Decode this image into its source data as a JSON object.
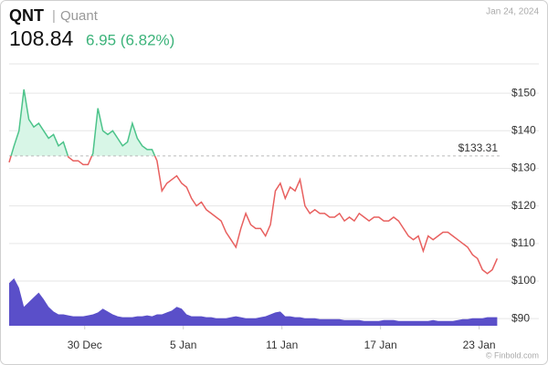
{
  "chart_data": {
    "type": "line",
    "symbol": "QNT",
    "name": "Quant",
    "date": "Jan 24, 2024",
    "price": "108.84",
    "change": "6.95 (6.82%)",
    "footer": "© Finbold.com",
    "baseline": {
      "value": 133.31,
      "label": "$133.31"
    },
    "xlim": [
      -4.6,
      25.3
    ],
    "xticks": [
      {
        "value": 0,
        "label": "30 Dec"
      },
      {
        "value": 6,
        "label": "5 Jan"
      },
      {
        "value": 12,
        "label": "11 Jan"
      },
      {
        "value": 18,
        "label": "17 Jan"
      },
      {
        "value": 24,
        "label": "23 Jan"
      }
    ],
    "ylim": [
      88.1,
      157.8
    ],
    "yticks": [
      {
        "value": 90,
        "label": "$90"
      },
      {
        "value": 100,
        "label": "$100"
      },
      {
        "value": 110,
        "label": "$110"
      },
      {
        "value": 120,
        "label": "$120"
      },
      {
        "value": 130,
        "label": "$130"
      },
      {
        "value": 140,
        "label": "$140"
      },
      {
        "value": 150,
        "label": "$150"
      }
    ],
    "grid": true,
    "colors": {
      "above": "#4cc38a",
      "below": "#e8605f",
      "fill_above": "#d8f6e7",
      "volume": "#5a4fc9"
    },
    "x": [
      -4.6,
      -4.3,
      -4.0,
      -3.7,
      -3.4,
      -3.1,
      -2.8,
      -2.5,
      -2.2,
      -1.9,
      -1.6,
      -1.3,
      -1.0,
      -0.7,
      -0.4,
      -0.1,
      0.2,
      0.5,
      0.8,
      1.1,
      1.4,
      1.7,
      2.0,
      2.3,
      2.6,
      2.9,
      3.2,
      3.5,
      3.8,
      4.1,
      4.4,
      4.7,
      5.0,
      5.3,
      5.6,
      5.9,
      6.2,
      6.5,
      6.8,
      7.1,
      7.4,
      7.7,
      8.0,
      8.3,
      8.6,
      8.9,
      9.2,
      9.5,
      9.8,
      10.1,
      10.4,
      10.7,
      11.0,
      11.3,
      11.6,
      11.9,
      12.2,
      12.5,
      12.8,
      13.1,
      13.4,
      13.7,
      14.0,
      14.3,
      14.6,
      14.9,
      15.2,
      15.5,
      15.8,
      16.1,
      16.4,
      16.7,
      17.0,
      17.3,
      17.6,
      17.9,
      18.2,
      18.5,
      18.8,
      19.1,
      19.4,
      19.7,
      20.0,
      20.3,
      20.6,
      20.9,
      21.2,
      21.5,
      21.8,
      22.1,
      22.4,
      22.7,
      23.0,
      23.3,
      23.6,
      23.9,
      24.2,
      24.5,
      24.8,
      25.1
    ],
    "series": [
      {
        "values": [
          131.6,
          136,
          140,
          151,
          143,
          141,
          142,
          140,
          138,
          139,
          136,
          137,
          133,
          132,
          132,
          131,
          131,
          134,
          146,
          140,
          139,
          140,
          138,
          136,
          137,
          142,
          138,
          136,
          135,
          135,
          132,
          124,
          126,
          127,
          128,
          126,
          125,
          122,
          120,
          121,
          119,
          118,
          117,
          116,
          113,
          111,
          109,
          114,
          118,
          115,
          114,
          114,
          112,
          115,
          124,
          126,
          122,
          125,
          124,
          127,
          120,
          118,
          119,
          118,
          118,
          117,
          117,
          118,
          116,
          117,
          116,
          118,
          117,
          116,
          117,
          117,
          116,
          116,
          117,
          116,
          114,
          112,
          111,
          112,
          108,
          112,
          111,
          112,
          113,
          113,
          112,
          111,
          110,
          109,
          107,
          106,
          103,
          102,
          103,
          106
        ]
      }
    ],
    "volume": {
      "values": [
        45,
        50,
        40,
        20,
        25,
        30,
        35,
        28,
        20,
        15,
        12,
        12,
        11,
        10,
        10,
        10,
        11,
        12,
        14,
        18,
        15,
        12,
        10,
        9,
        9,
        9,
        10,
        10,
        11,
        10,
        12,
        12,
        14,
        16,
        20,
        18,
        12,
        10,
        10,
        10,
        9,
        9,
        8,
        8,
        8,
        9,
        10,
        9,
        8,
        8,
        8,
        9,
        10,
        12,
        14,
        15,
        10,
        10,
        9,
        9,
        8,
        8,
        8,
        7,
        7,
        7,
        7,
        7,
        6,
        6,
        6,
        6,
        5,
        5,
        5,
        5,
        6,
        6,
        6,
        5,
        5,
        5,
        5,
        5,
        5,
        5,
        6,
        5,
        5,
        5,
        5,
        6,
        7,
        7,
        8,
        8,
        8,
        9,
        9,
        9
      ]
    }
  }
}
